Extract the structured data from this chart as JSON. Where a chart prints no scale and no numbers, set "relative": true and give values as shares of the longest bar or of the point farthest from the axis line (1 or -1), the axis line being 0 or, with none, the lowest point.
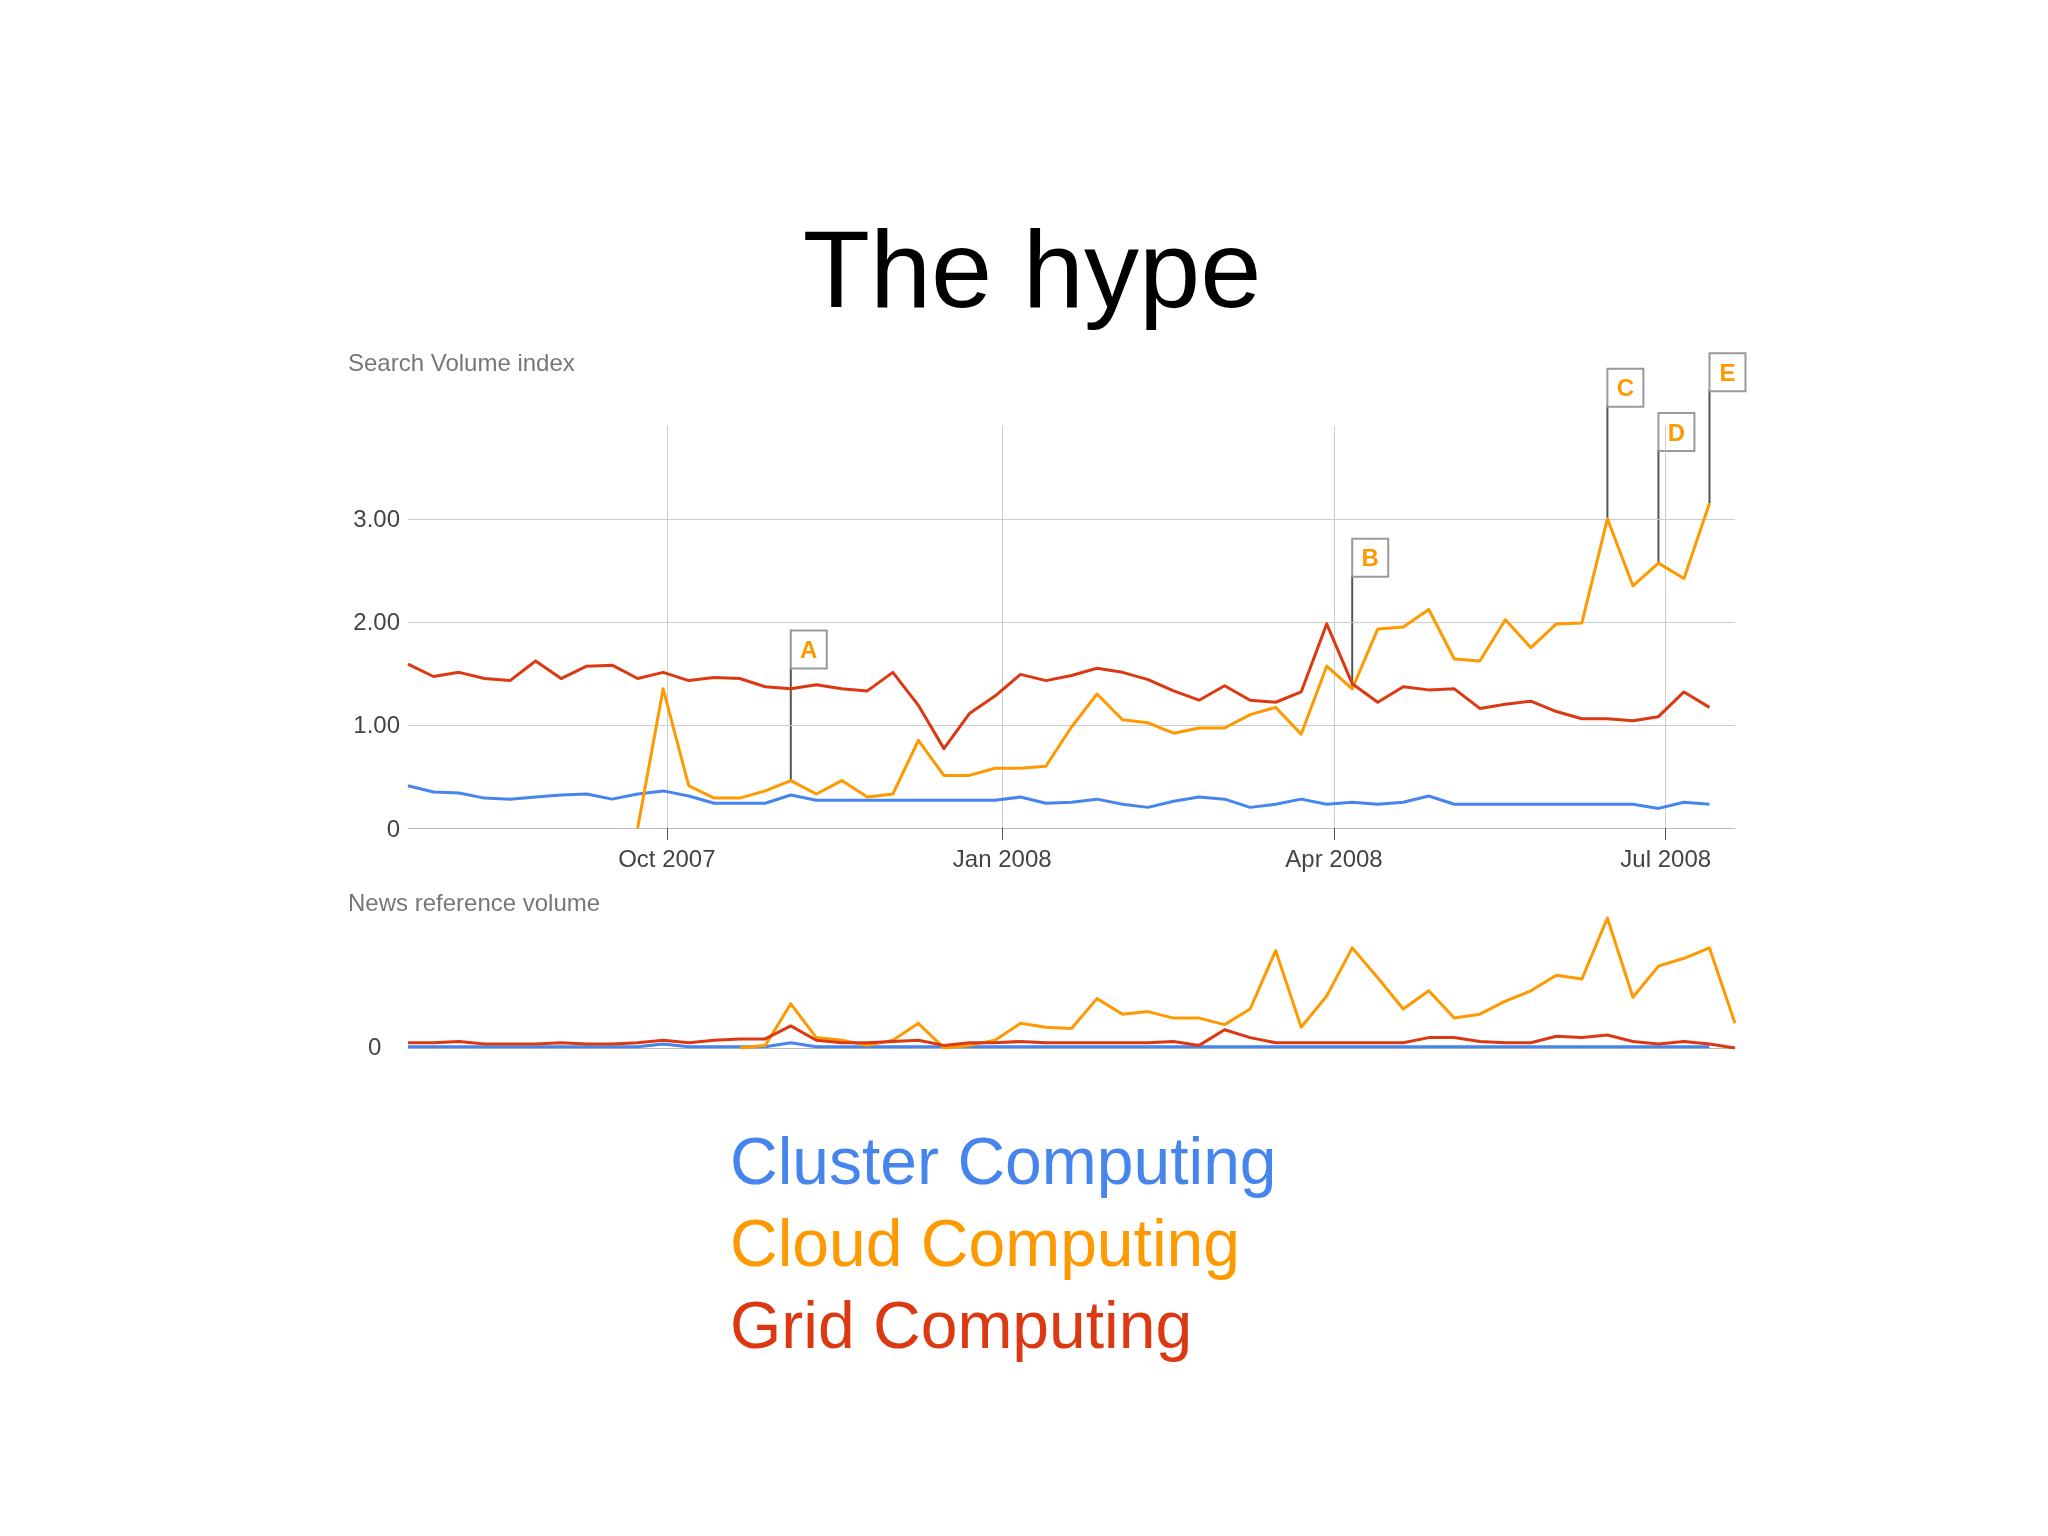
{
  "chart_data": [
    {
      "type": "line",
      "title": "The hype",
      "ylabel": "Search Volume index",
      "x": [
        "2007-07-22",
        "2007-07-29",
        "2007-08-05",
        "2007-08-12",
        "2007-08-19",
        "2007-08-26",
        "2007-09-02",
        "2007-09-09",
        "2007-09-16",
        "2007-09-23",
        "2007-09-30",
        "2007-10-07",
        "2007-10-14",
        "2007-10-21",
        "2007-10-28",
        "2007-11-04",
        "2007-11-11",
        "2007-11-18",
        "2007-11-25",
        "2007-12-02",
        "2007-12-09",
        "2007-12-16",
        "2007-12-23",
        "2007-12-30",
        "2008-01-06",
        "2008-01-13",
        "2008-01-20",
        "2008-01-27",
        "2008-02-03",
        "2008-02-10",
        "2008-02-17",
        "2008-02-24",
        "2008-03-02",
        "2008-03-09",
        "2008-03-16",
        "2008-03-23",
        "2008-03-30",
        "2008-04-06",
        "2008-04-13",
        "2008-04-20",
        "2008-04-27",
        "2008-05-04",
        "2008-05-11",
        "2008-05-18",
        "2008-05-25",
        "2008-06-01",
        "2008-06-08",
        "2008-06-15",
        "2008-06-22",
        "2008-06-29",
        "2008-07-06",
        "2008-07-13"
      ],
      "series": [
        {
          "color": "#4684ee",
          "values": [
            0.41,
            0.35,
            0.34,
            0.29,
            0.28,
            0.3,
            0.32,
            0.33,
            0.28,
            0.33,
            0.36,
            0.31,
            0.24,
            0.24,
            0.24,
            0.32,
            0.27,
            0.27,
            0.27,
            0.27,
            0.27,
            0.27,
            0.27,
            0.27,
            0.3,
            0.24,
            0.25,
            0.28,
            0.23,
            0.2,
            0.26,
            0.3,
            0.28,
            0.2,
            0.23,
            0.28,
            0.23,
            0.25,
            0.23,
            0.25,
            0.31,
            0.23,
            0.23,
            0.23,
            0.23,
            0.23,
            0.23,
            0.23,
            0.23,
            0.19,
            0.25,
            0.23
          ]
        },
        {
          "color": "#ff9900",
          "values": [
            null,
            null,
            null,
            null,
            null,
            null,
            null,
            null,
            null,
            0,
            1.35,
            0.41,
            0.29,
            0.29,
            0.36,
            0.46,
            0.33,
            0.46,
            0.3,
            0.33,
            0.85,
            0.51,
            0.51,
            0.58,
            0.58,
            0.6,
            0.98,
            1.3,
            1.05,
            1.02,
            0.92,
            0.97,
            0.97,
            1.1,
            1.17,
            0.91,
            1.57,
            1.35,
            1.93,
            1.95,
            2.12,
            1.64,
            1.62,
            2.02,
            1.75,
            1.98,
            1.99,
            3.0,
            2.35,
            2.57,
            2.42,
            3.15
          ]
        },
        {
          "color": "#dc3912",
          "values": [
            1.59,
            1.47,
            1.51,
            1.45,
            1.43,
            1.62,
            1.45,
            1.57,
            1.58,
            1.45,
            1.51,
            1.43,
            1.46,
            1.45,
            1.37,
            1.35,
            1.39,
            1.35,
            1.33,
            1.51,
            1.19,
            0.77,
            1.11,
            1.28,
            1.49,
            1.43,
            1.48,
            1.55,
            1.51,
            1.44,
            1.33,
            1.24,
            1.38,
            1.24,
            1.22,
            1.32,
            1.98,
            1.4,
            1.22,
            1.37,
            1.34,
            1.35,
            1.16,
            1.2,
            1.23,
            1.13,
            1.06,
            1.06,
            1.04,
            1.08,
            1.32,
            1.17
          ]
        }
      ],
      "xlim": [
        "2007-07-22",
        "2008-07-20"
      ],
      "xticks": [
        {
          "value": "2007-10-01",
          "label": "Oct 2007"
        },
        {
          "value": "2008-01-01",
          "label": "Jan 2008"
        },
        {
          "value": "2008-04-01",
          "label": "Apr 2008"
        },
        {
          "value": "2008-07-01",
          "label": "Jul 2008"
        }
      ],
      "ylim": [
        0,
        3.9
      ],
      "yticks": [
        0,
        {
          "value": 1,
          "label": "1.00"
        },
        {
          "value": 2,
          "label": "2.00"
        },
        {
          "value": 3,
          "label": "3.00"
        }
      ],
      "grid": true,
      "annotations": [
        {
          "text": "A",
          "x": "2007-11-04",
          "y": 0.46
        },
        {
          "text": "B",
          "x": "2008-04-06",
          "y": 1.35
        },
        {
          "text": "C",
          "x": "2008-06-15",
          "y": 3.0
        },
        {
          "text": "D",
          "x": "2008-06-29",
          "y": 2.57
        },
        {
          "text": "E",
          "x": "2008-07-13",
          "y": 3.15
        }
      ]
    },
    {
      "type": "line",
      "ylabel": "News reference volume",
      "relative": true,
      "categories": [
        null,
        null,
        null,
        null,
        null,
        null,
        null,
        null,
        null,
        null,
        null,
        null,
        null,
        null,
        null,
        null,
        null,
        null,
        null,
        null,
        null,
        null,
        null,
        null,
        null,
        null,
        null,
        null,
        null,
        null,
        null,
        null,
        null,
        null,
        null,
        null,
        null,
        null,
        null,
        null,
        null,
        null,
        null,
        null,
        null,
        null,
        null,
        null,
        null,
        null,
        null,
        null,
        null
      ],
      "series": [
        {
          "name": "Cluster Computing",
          "color": "#4684ee",
          "values": [
            0.01,
            0.01,
            0.01,
            0.01,
            0.01,
            0.01,
            0.01,
            0.01,
            0.01,
            0.01,
            0.03,
            0.01,
            0.01,
            0.01,
            0.01,
            0.04,
            0.01,
            0.01,
            0.01,
            0.01,
            0.01,
            0.01,
            0.01,
            0.01,
            0.01,
            0.01,
            0.01,
            0.01,
            0.01,
            0.01,
            0.01,
            0.01,
            0.01,
            0.01,
            0.01,
            0.01,
            0.01,
            0.01,
            0.01,
            0.01,
            0.01,
            0.01,
            0.01,
            0.01,
            0.01,
            0.01,
            0.01,
            0.01,
            0.01,
            0.01,
            0.01,
            0.01,
            null
          ]
        },
        {
          "name": "Cloud Computing",
          "color": "#ff9900",
          "values": [
            null,
            null,
            null,
            null,
            null,
            null,
            null,
            null,
            null,
            null,
            null,
            null,
            null,
            0,
            0.02,
            0.34,
            0.08,
            0.06,
            0.02,
            0.06,
            0.19,
            0,
            0.02,
            0.06,
            0.19,
            0.16,
            0.15,
            0.38,
            0.26,
            0.28,
            0.23,
            0.23,
            0.18,
            0.3,
            0.75,
            0.16,
            0.4,
            0.77,
            0.54,
            0.3,
            0.44,
            0.23,
            0.26,
            0.36,
            0.44,
            0.56,
            0.53,
            1.0,
            0.39,
            0.63,
            0.69,
            0.77,
            0.19
          ]
        },
        {
          "name": "Grid Computing",
          "color": "#dc3912",
          "values": [
            0.04,
            0.04,
            0.05,
            0.03,
            0.03,
            0.03,
            0.04,
            0.03,
            0.03,
            0.04,
            0.06,
            0.04,
            0.06,
            0.07,
            0.07,
            0.17,
            0.06,
            0.04,
            0.04,
            0.05,
            0.06,
            0.02,
            0.04,
            0.04,
            0.05,
            0.04,
            0.04,
            0.04,
            0.04,
            0.04,
            0.05,
            0.02,
            0.14,
            0.08,
            0.04,
            0.04,
            0.04,
            0.04,
            0.04,
            0.04,
            0.08,
            0.08,
            0.05,
            0.04,
            0.04,
            0.09,
            0.08,
            0.1,
            0.05,
            0.03,
            0.05,
            0.03,
            0
          ]
        }
      ],
      "annotations": [
        "0"
      ]
    }
  ]
}
